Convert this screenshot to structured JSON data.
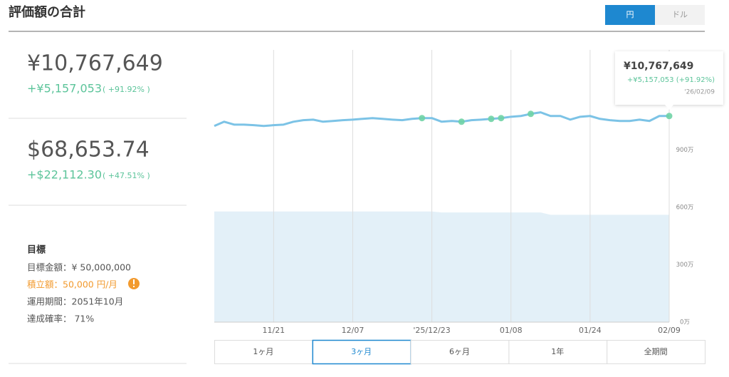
{
  "header": {
    "title": "評価額の合計",
    "currency_toggle": [
      "円",
      "ドル"
    ]
  },
  "summary": [
    {
      "total": "¥10,767,649",
      "gain": "+¥5,157,053",
      "gain_pct": "( +91.92% )"
    },
    {
      "total": "$68,653.74",
      "gain": "+$22,112.30",
      "gain_pct": "( +47.51% )"
    }
  ],
  "goal": {
    "title": "目標",
    "lines": [
      "目標金額：¥ 50,000,000",
      "積立額：50,000 円/月",
      "運用期間：2051年10月",
      "達成確率： 71%"
    ]
  },
  "chart_data": {
    "type": "line",
    "categories": [
      null,
      null,
      null,
      null,
      null,
      null,
      "11/21",
      null,
      null,
      null,
      null,
      null,
      null,
      null,
      "12/07",
      null,
      null,
      null,
      null,
      null,
      null,
      null,
      "'25/12/23",
      null,
      null,
      null,
      null,
      null,
      null,
      null,
      "01/08",
      null,
      null,
      null,
      null,
      null,
      null,
      null,
      "01/24",
      null,
      null,
      null,
      null,
      null,
      null,
      null,
      "02/09"
    ],
    "series": [
      {
        "color": "#7cc3e6",
        "values": [
          10250000,
          10470000,
          10320000,
          10320000,
          10290000,
          10250000,
          10290000,
          10320000,
          10470000,
          10550000,
          10580000,
          10470000,
          10510000,
          10550000,
          10580000,
          10620000,
          10660000,
          10620000,
          10580000,
          10550000,
          10620000,
          10660000,
          10660000,
          10470000,
          10510000,
          10470000,
          10550000,
          10580000,
          10620000,
          10660000,
          10730000,
          10770000,
          10880000,
          10960000,
          10770000,
          10770000,
          10580000,
          10730000,
          10770000,
          10620000,
          10550000,
          10510000,
          10510000,
          10580000,
          10510000,
          10770000,
          10767649
        ]
      },
      {
        "color": "#6fd3a5",
        "values": [
          null,
          null,
          null,
          null,
          null,
          null,
          null,
          null,
          null,
          null,
          null,
          null,
          null,
          null,
          null,
          null,
          null,
          null,
          null,
          null,
          null,
          10660000,
          null,
          null,
          null,
          10470000,
          null,
          null,
          10620000,
          10660000,
          null,
          null,
          10880000,
          null,
          null,
          null,
          null,
          null,
          null,
          null,
          null,
          null,
          null,
          null,
          null,
          null,
          10767649
        ]
      },
      {
        "color": "#e3f0f8",
        "values": [
          5780000,
          5780000,
          5780000,
          5780000,
          5780000,
          5780000,
          5780000,
          5780000,
          5780000,
          5780000,
          5780000,
          5780000,
          5780000,
          5780000,
          5780000,
          5780000,
          5780000,
          5780000,
          5780000,
          5780000,
          5780000,
          5780000,
          5780000,
          5730000,
          5730000,
          5730000,
          5730000,
          5730000,
          5730000,
          5730000,
          5730000,
          5730000,
          5730000,
          5730000,
          5610596,
          5610596,
          5610596,
          5610596,
          5610596,
          5610596,
          5610596,
          5610596,
          5610596,
          5610596,
          5610596,
          5610596,
          5610596
        ]
      }
    ],
    "ylim": [
      0,
      14000000
    ],
    "yticks": [
      {
        "value": 0,
        "label": "0万"
      },
      {
        "value": 3000000,
        "label": "300万"
      },
      {
        "value": 6000000,
        "label": "600万"
      },
      {
        "value": 9000000,
        "label": "900万"
      }
    ],
    "tooltip": {
      "total": "¥10,767,649",
      "gain": "+¥5,157,053 (+91.92%)",
      "date": "'26/02/09"
    }
  },
  "range_buttons": [
    "1ヶ月",
    "3ヶ月",
    "6ヶ月",
    "1年",
    "全期間"
  ]
}
